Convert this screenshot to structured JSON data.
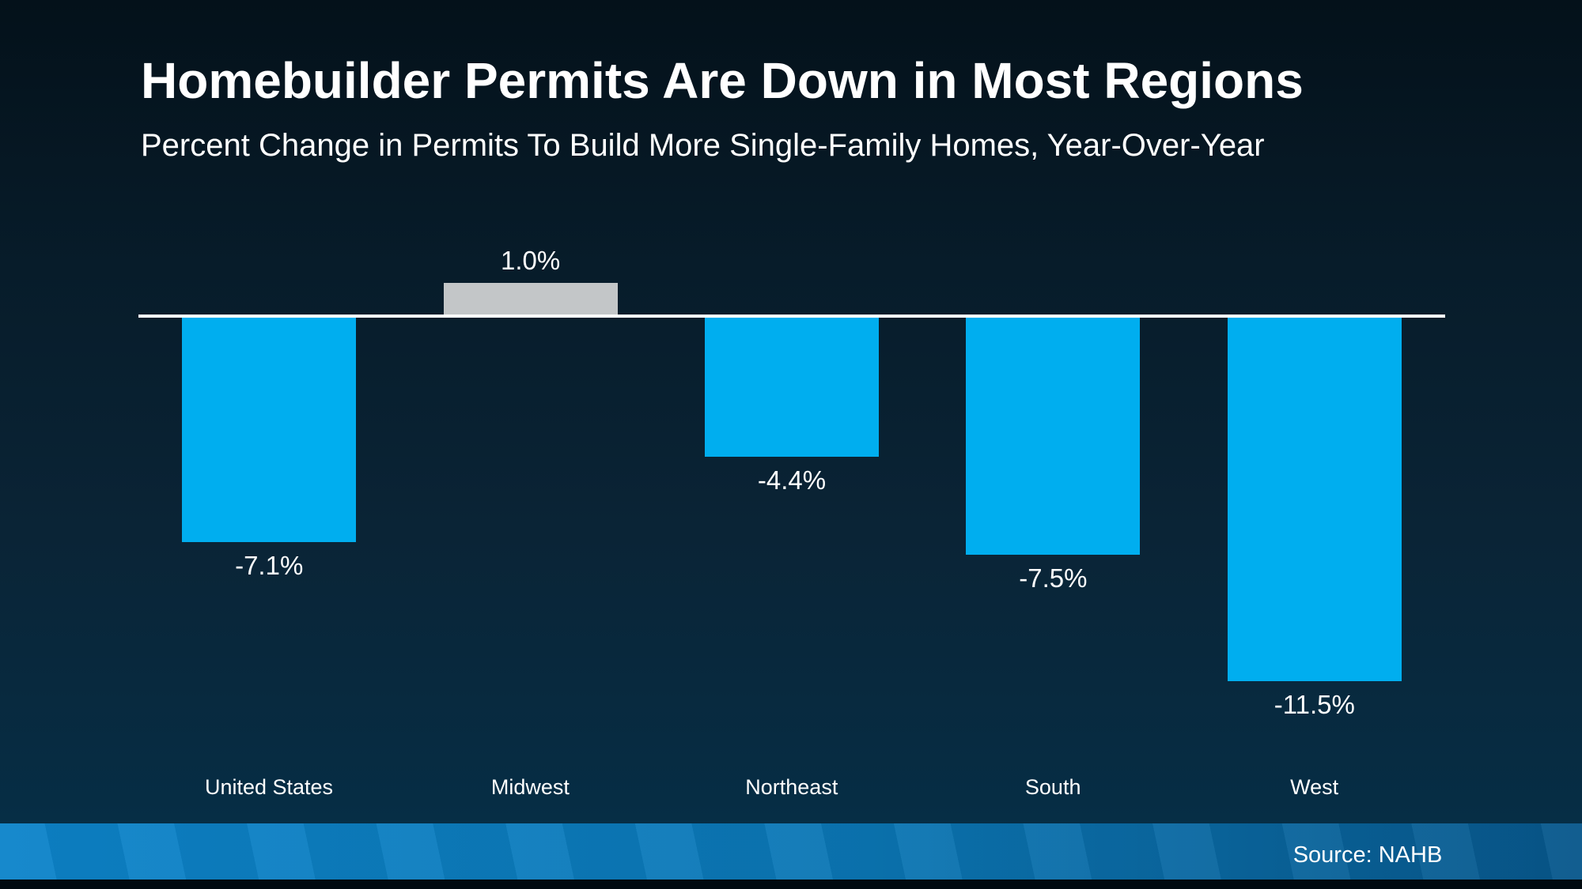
{
  "chart_data": {
    "type": "bar",
    "title": "Homebuilder Permits Are Down in Most Regions",
    "subtitle": "Percent Change in Permits To Build More Single-Family Homes, Year-Over-Year",
    "categories": [
      "United States",
      "Midwest",
      "Northeast",
      "South",
      "West"
    ],
    "values": [
      -7.1,
      1.0,
      -4.4,
      -7.5,
      -11.5
    ],
    "value_labels": [
      "-7.1%",
      "1.0%",
      "-4.4%",
      "-7.5%",
      "-11.5%"
    ],
    "bar_colors": [
      "#00aeef",
      "#c3c6c8",
      "#00aeef",
      "#00aeef",
      "#00aeef"
    ],
    "unit": "%",
    "ylim": [
      -11.5,
      1.5
    ],
    "gridlines": false,
    "legend": "none",
    "baseline_color": "#ffffff",
    "orientation": "vertical"
  },
  "footer": {
    "source": "Source: NAHB",
    "strip_color_left": "#0d84ca",
    "strip_color_right": "#07578b"
  },
  "theme": {
    "background_top": "#04111a",
    "background_bottom": "#053049",
    "text_color": "#ffffff"
  }
}
